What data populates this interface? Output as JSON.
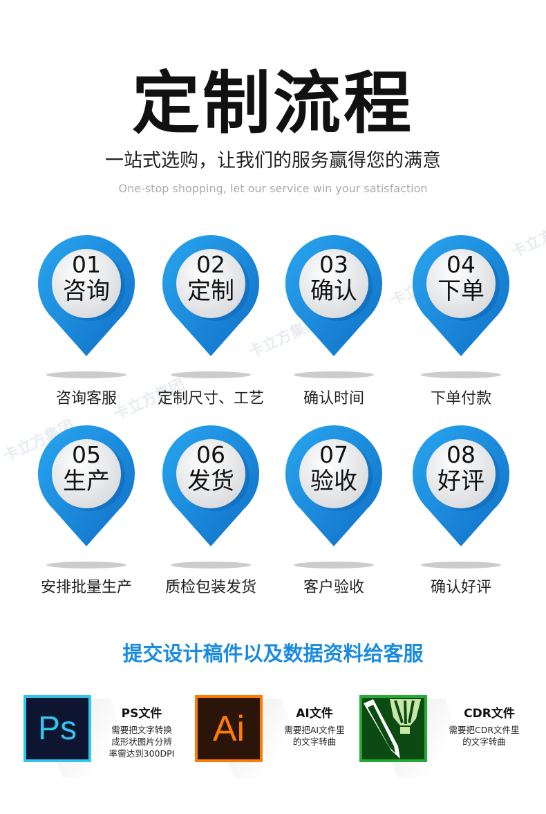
{
  "title": "定制流程",
  "subtitle": "一站式选购，让我们的服务赢得您的满意",
  "subtitle_en": "One-stop shopping, let our service win your satisfaction",
  "watermark": "卡立方集团",
  "colors": {
    "pin_blue": "#1a8fe3",
    "section_blue": "#1a8be0",
    "ps": "#31c5f0",
    "ai": "#ff7c00",
    "cdr": "#27a935"
  },
  "steps": [
    {
      "num": "01",
      "name": "咨询",
      "label": "咨询客服"
    },
    {
      "num": "02",
      "name": "定制",
      "label": "定制尺寸、工艺"
    },
    {
      "num": "03",
      "name": "确认",
      "label": "确认时间"
    },
    {
      "num": "04",
      "name": "下单",
      "label": "下单付款"
    },
    {
      "num": "05",
      "name": "生产",
      "label": "安排批量生产"
    },
    {
      "num": "06",
      "name": "发货",
      "label": "质检包装发货"
    },
    {
      "num": "07",
      "name": "验收",
      "label": "客户验收"
    },
    {
      "num": "08",
      "name": "好评",
      "label": "确认好评"
    }
  ],
  "section_title": "提交设计稿件以及数据资料给客服",
  "files": [
    {
      "logo": "Ps",
      "title": "PS文件",
      "desc": [
        "需要把文字转换",
        "成形状图片分辨",
        "率需达到300DPI"
      ]
    },
    {
      "logo": "Ai",
      "title": "AI文件",
      "desc": [
        "需要把AI文件里",
        "的文字转曲"
      ]
    },
    {
      "logo": "",
      "title": "CDR文件",
      "desc": [
        "需要把CDR文件里",
        "的文字转曲"
      ]
    }
  ]
}
